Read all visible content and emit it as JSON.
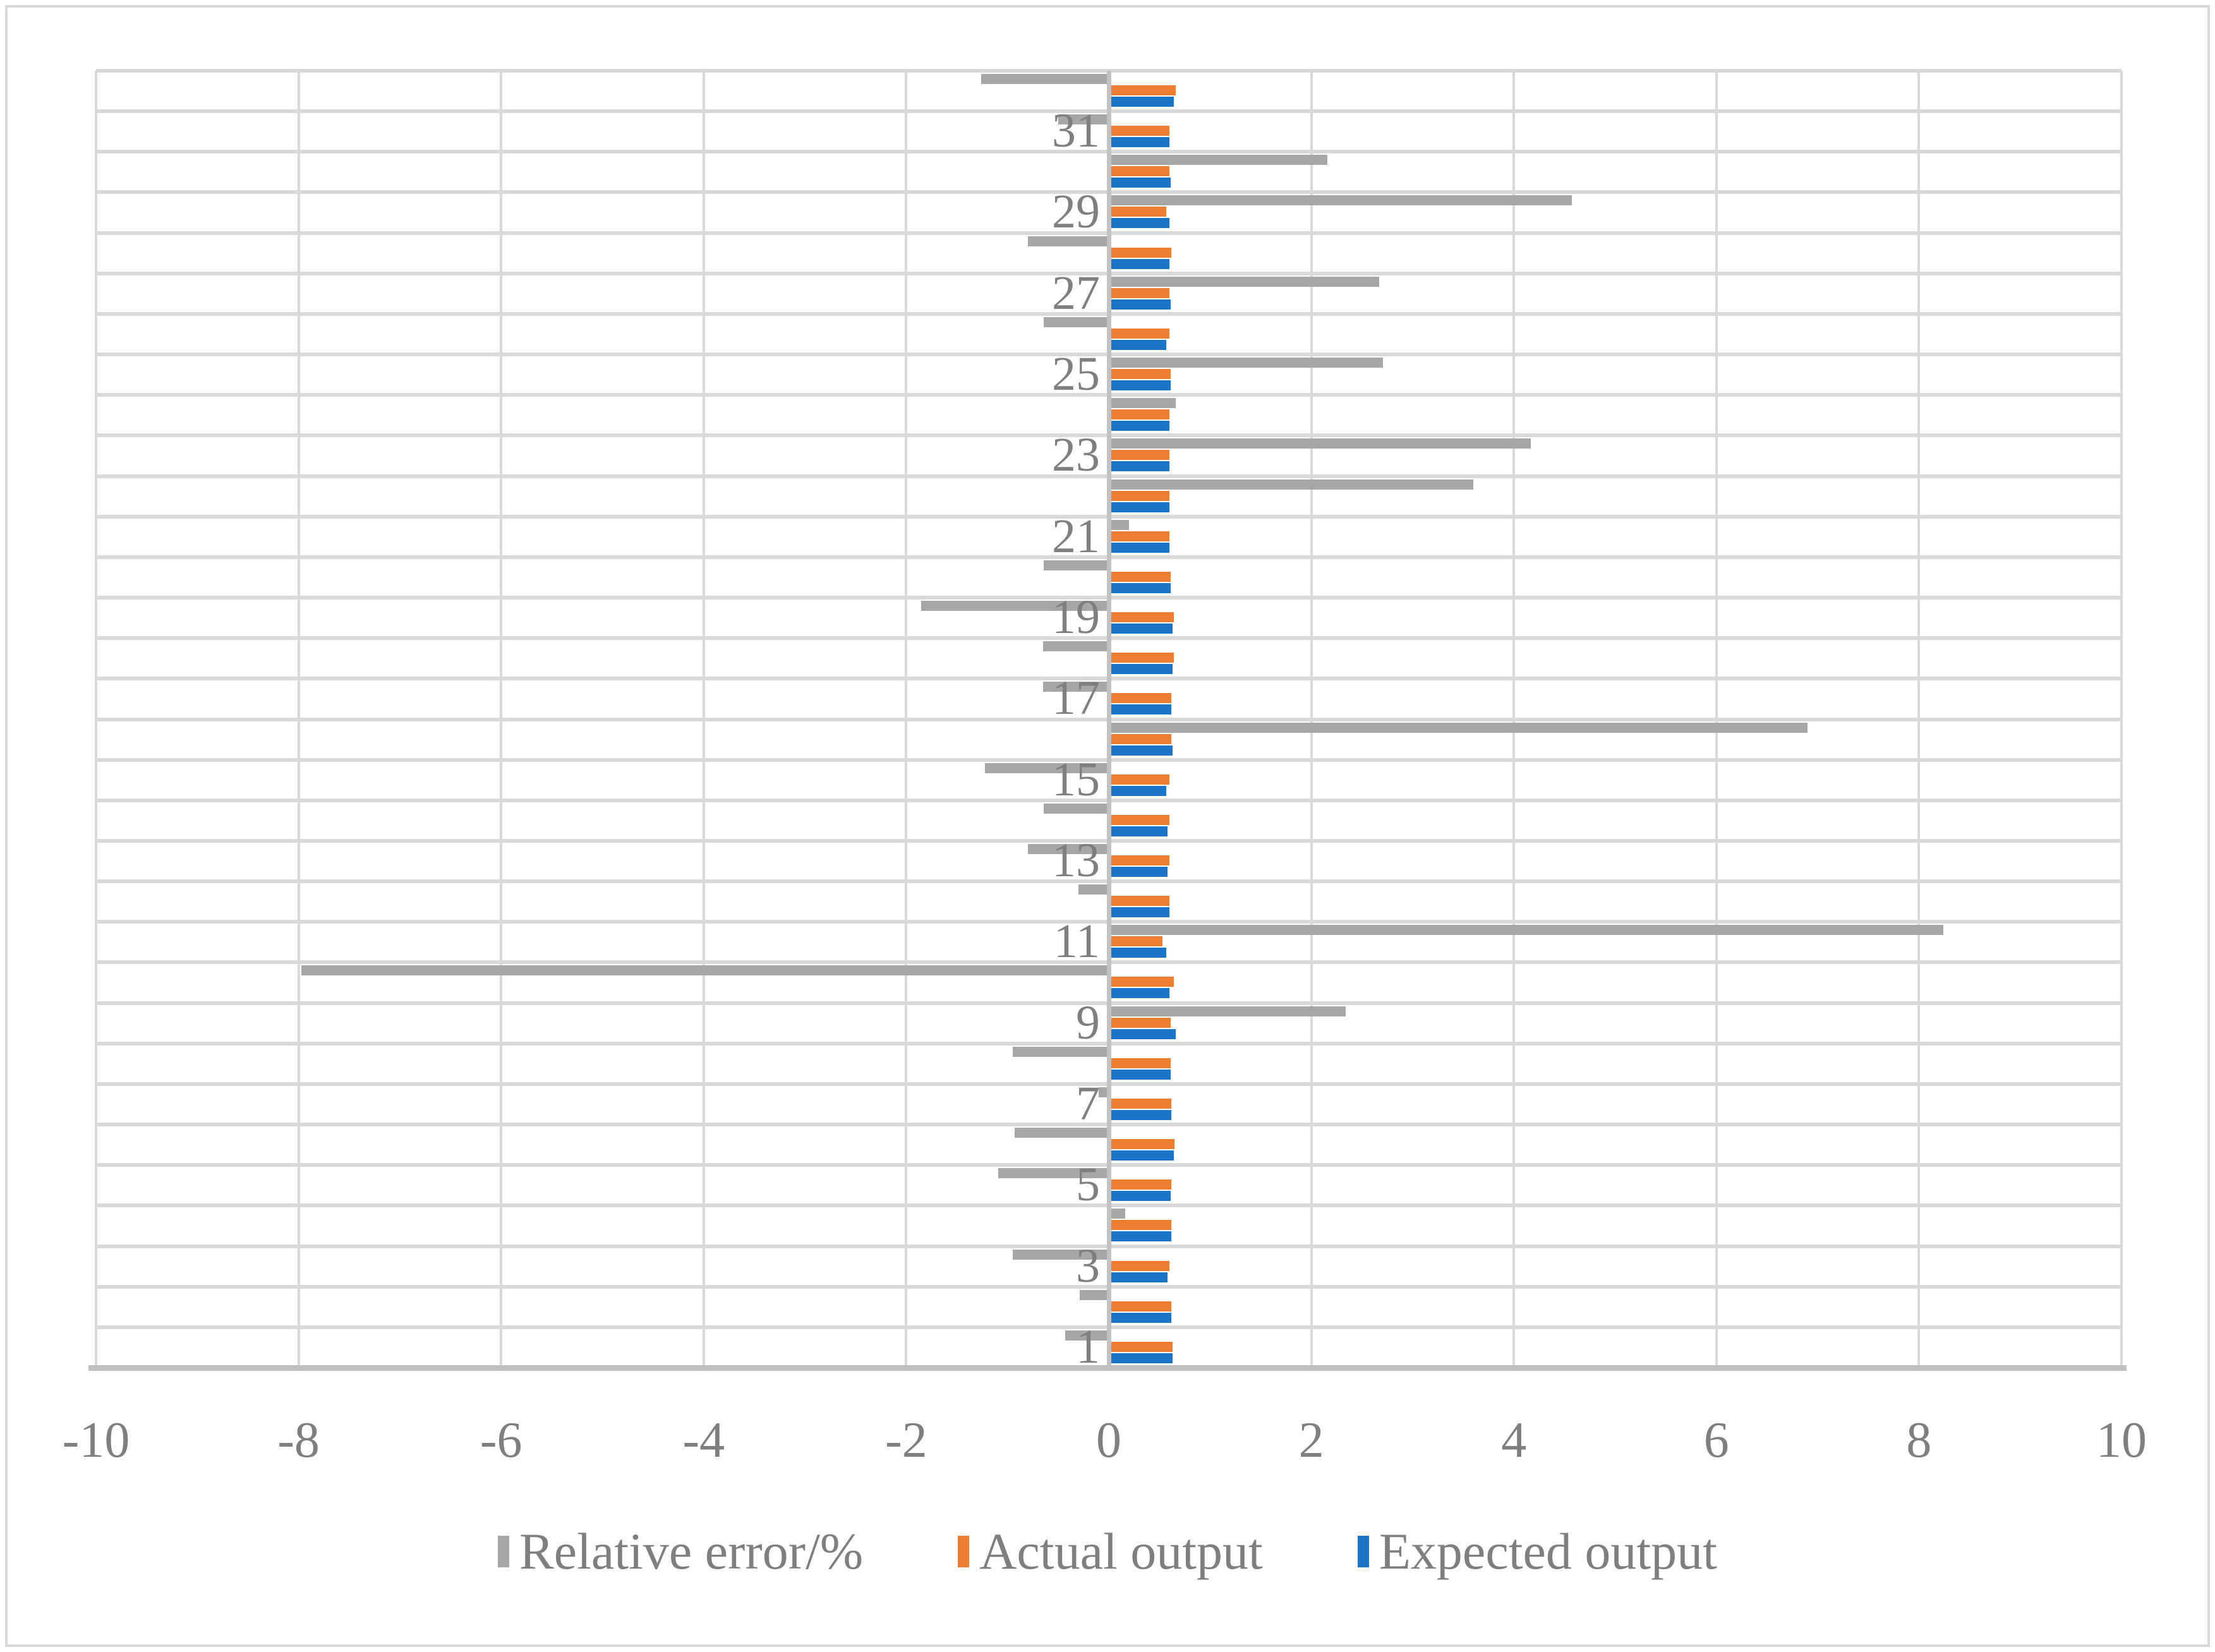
{
  "chart_data": {
    "type": "bar",
    "orientation": "horizontal",
    "title": "",
    "xlabel": "",
    "ylabel": "",
    "xlim": [
      -10,
      10
    ],
    "x_tick_step": 2,
    "x_tick_labels": [
      "-10",
      "-8",
      "-6",
      "-4",
      "-2",
      "0",
      "2",
      "4",
      "6",
      "8",
      "10"
    ],
    "grid": true,
    "legend_position": "bottom",
    "categories": [
      1,
      2,
      3,
      4,
      5,
      6,
      7,
      8,
      9,
      10,
      11,
      12,
      13,
      14,
      15,
      16,
      17,
      18,
      19,
      20,
      21,
      22,
      23,
      24,
      25,
      26,
      27,
      28,
      29,
      30,
      31,
      32
    ],
    "labeled_categories": [
      1,
      3,
      5,
      7,
      9,
      11,
      13,
      15,
      17,
      19,
      21,
      23,
      25,
      27,
      29,
      31
    ],
    "series": [
      {
        "name": "Relative error/%",
        "color": "#a6a6a6",
        "values": [
          -0.43,
          -0.29,
          -0.95,
          0.16,
          -1.09,
          -0.93,
          -0.1,
          -0.95,
          2.34,
          -7.97,
          8.24,
          -0.3,
          -0.8,
          -0.64,
          -1.22,
          6.9,
          -0.65,
          -0.65,
          -1.85,
          -0.64,
          0.2,
          3.6,
          4.17,
          0.66,
          2.71,
          -0.64,
          2.67,
          -0.8,
          4.57,
          2.16,
          -0.5,
          -1.26
        ]
      },
      {
        "name": "Actual output",
        "color": "#ed7d31",
        "values": [
          0.63,
          0.62,
          0.6,
          0.62,
          0.62,
          0.65,
          0.62,
          0.61,
          0.61,
          0.64,
          0.53,
          0.6,
          0.6,
          0.6,
          0.6,
          0.62,
          0.62,
          0.64,
          0.64,
          0.61,
          0.6,
          0.6,
          0.6,
          0.6,
          0.61,
          0.6,
          0.6,
          0.62,
          0.57,
          0.6,
          0.6,
          0.66
        ]
      },
      {
        "name": "Expected output",
        "color": "#1b74c8",
        "values": [
          0.63,
          0.62,
          0.58,
          0.62,
          0.61,
          0.64,
          0.62,
          0.61,
          0.66,
          0.6,
          0.57,
          0.6,
          0.58,
          0.58,
          0.57,
          0.63,
          0.62,
          0.63,
          0.63,
          0.61,
          0.6,
          0.6,
          0.6,
          0.6,
          0.61,
          0.57,
          0.61,
          0.6,
          0.6,
          0.61,
          0.6,
          0.64
        ]
      }
    ],
    "colors": {
      "gridline": "#d9d9d9",
      "axis_line": "#bfbfbf",
      "zero_line": "#c2c2c2",
      "text": "#7f7f7f",
      "background": "#ffffff",
      "outer_border": "#d8d8d8"
    }
  }
}
